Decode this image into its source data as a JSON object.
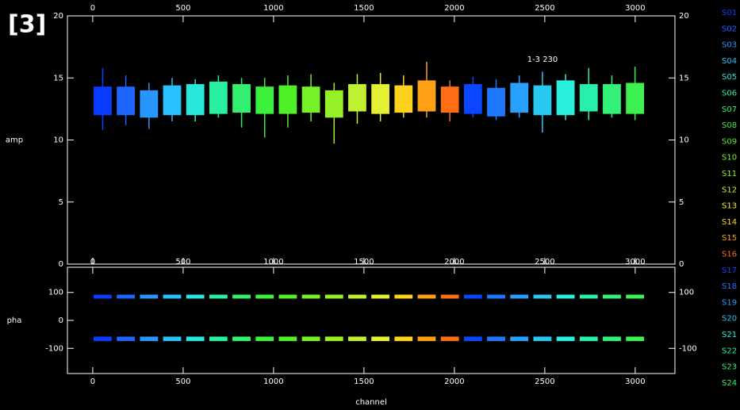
{
  "label": "[3]",
  "x_label": "channel",
  "chart_data": [
    {
      "type": "range",
      "y_label": "amp",
      "annotation": "1-3 230",
      "xlim": [
        -140,
        3220
      ],
      "xticks": [
        0,
        500,
        1000,
        1500,
        2000,
        2500,
        3000
      ],
      "ylim": [
        0,
        20
      ],
      "yticks": [
        0,
        5,
        10,
        15,
        20
      ],
      "y2ticks": [
        0,
        5,
        10,
        15,
        20
      ],
      "series": [
        {
          "name": "S01",
          "color": "#0a3cff",
          "x": [
            5,
            105
          ],
          "whisker": [
            10.8,
            15.8
          ],
          "bands": [
            [
              12,
              14.3
            ]
          ]
        },
        {
          "name": "S02",
          "color": "#1e64ff",
          "x": [
            133,
            233
          ],
          "whisker": [
            11.2,
            15.2
          ],
          "bands": [
            [
              12,
              14.3
            ]
          ]
        },
        {
          "name": "S03",
          "color": "#2896ff",
          "x": [
            261,
            361
          ],
          "whisker": [
            10.9,
            14.6
          ],
          "bands": [
            [
              11.8,
              14
            ]
          ]
        },
        {
          "name": "S04",
          "color": "#28c0ff",
          "x": [
            389,
            489
          ],
          "whisker": [
            11.5,
            15
          ],
          "bands": [
            [
              12,
              14.4
            ]
          ]
        },
        {
          "name": "S05",
          "color": "#28e6dc",
          "x": [
            517,
            617
          ],
          "whisker": [
            11.5,
            14.9
          ],
          "bands": [
            [
              12,
              14.5
            ]
          ]
        },
        {
          "name": "S06",
          "color": "#28f0a0",
          "x": [
            645,
            745
          ],
          "whisker": [
            11.8,
            15.2
          ],
          "bands": [
            [
              12.1,
              14.7
            ]
          ]
        },
        {
          "name": "S07",
          "color": "#32f06e",
          "x": [
            773,
            873
          ],
          "whisker": [
            11,
            15
          ],
          "bands": [
            [
              12.2,
              14.5
            ]
          ]
        },
        {
          "name": "S08",
          "color": "#3cf03c",
          "x": [
            901,
            1001
          ],
          "whisker": [
            10.2,
            15
          ],
          "bands": [
            [
              12.1,
              14.3
            ]
          ]
        },
        {
          "name": "S09",
          "color": "#50f028",
          "x": [
            1029,
            1129
          ],
          "whisker": [
            11,
            15.2
          ],
          "bands": [
            [
              12.1,
              14.4
            ]
          ]
        },
        {
          "name": "S10",
          "color": "#78f028",
          "x": [
            1157,
            1257
          ],
          "whisker": [
            11.5,
            15.3
          ],
          "bands": [
            [
              12.2,
              14.3
            ]
          ]
        },
        {
          "name": "S11",
          "color": "#96f028",
          "x": [
            1285,
            1385
          ],
          "whisker": [
            9.7,
            14.6
          ],
          "bands": [
            [
              11.8,
              14
            ]
          ]
        },
        {
          "name": "S12",
          "color": "#c0f032",
          "x": [
            1413,
            1513
          ],
          "whisker": [
            11.3,
            15.3
          ],
          "bands": [
            [
              12.3,
              14.5
            ]
          ]
        },
        {
          "name": "S13",
          "color": "#e6f032",
          "x": [
            1541,
            1641
          ],
          "whisker": [
            11.5,
            15.4
          ],
          "bands": [
            [
              12.1,
              14.5
            ]
          ]
        },
        {
          "name": "S14",
          "color": "#ffd21e",
          "x": [
            1669,
            1769
          ],
          "whisker": [
            11.8,
            15.2
          ],
          "bands": [
            [
              12.2,
              14.4
            ]
          ]
        },
        {
          "name": "S15",
          "color": "#ffa014",
          "x": [
            1797,
            1897
          ],
          "whisker": [
            11.8,
            16.3
          ],
          "bands": [
            [
              12.3,
              14.8
            ]
          ]
        },
        {
          "name": "S16",
          "color": "#ff6e14",
          "x": [
            1925,
            2025
          ],
          "whisker": [
            11.5,
            14.8
          ],
          "bands": [
            [
              12.2,
              14.3
            ]
          ]
        },
        {
          "name": "S17",
          "color": "#0a46ff",
          "x": [
            2053,
            2153
          ],
          "whisker": [
            11.8,
            15.1
          ],
          "bands": [
            [
              12.1,
              14.5
            ]
          ]
        },
        {
          "name": "S18",
          "color": "#1e78ff",
          "x": [
            2181,
            2281
          ],
          "whisker": [
            11.6,
            14.9
          ],
          "bands": [
            [
              11.9,
              14.2
            ]
          ]
        },
        {
          "name": "S19",
          "color": "#28a0ff",
          "x": [
            2309,
            2409
          ],
          "whisker": [
            11.8,
            15.2
          ],
          "bands": [
            [
              12.2,
              14.6
            ]
          ]
        },
        {
          "name": "S20",
          "color": "#28c8f0",
          "x": [
            2437,
            2537
          ],
          "whisker": [
            10.6,
            15.5
          ],
          "bands": [
            [
              12,
              14.4
            ]
          ]
        },
        {
          "name": "S21",
          "color": "#28f0dc",
          "x": [
            2565,
            2665
          ],
          "whisker": [
            11.6,
            15.3
          ],
          "bands": [
            [
              12,
              14.8
            ]
          ]
        },
        {
          "name": "S22",
          "color": "#28f0aa",
          "x": [
            2693,
            2793
          ],
          "whisker": [
            11.6,
            15.8
          ],
          "bands": [
            [
              12.3,
              14.5
            ]
          ]
        },
        {
          "name": "S23",
          "color": "#32f078",
          "x": [
            2821,
            2921
          ],
          "whisker": [
            11.8,
            15.2
          ],
          "bands": [
            [
              12.1,
              14.5
            ]
          ]
        },
        {
          "name": "S24",
          "color": "#3cf050",
          "x": [
            2949,
            3049
          ],
          "whisker": [
            11.6,
            15.9
          ],
          "bands": [
            [
              12.1,
              14.6
            ]
          ]
        }
      ]
    },
    {
      "type": "range",
      "y_label": "pha",
      "xlim": [
        -140,
        3220
      ],
      "xticks": [
        0,
        500,
        1000,
        1500,
        2000,
        2500,
        3000
      ],
      "ylim": [
        -190,
        190
      ],
      "yticks": [
        -100,
        0,
        100
      ],
      "y2ticks": [
        -100,
        100
      ],
      "series": [
        {
          "color": "#0a3cff",
          "x": [
            5,
            105
          ],
          "bands": [
            [
              78,
              92
            ],
            [
              -74,
              -58
            ]
          ]
        },
        {
          "color": "#1e64ff",
          "x": [
            133,
            233
          ],
          "bands": [
            [
              78,
              92
            ],
            [
              -74,
              -58
            ]
          ]
        },
        {
          "color": "#2896ff",
          "x": [
            261,
            361
          ],
          "bands": [
            [
              78,
              92
            ],
            [
              -74,
              -58
            ]
          ]
        },
        {
          "color": "#28c0ff",
          "x": [
            389,
            489
          ],
          "bands": [
            [
              78,
              92
            ],
            [
              -74,
              -58
            ]
          ]
        },
        {
          "color": "#28e6dc",
          "x": [
            517,
            617
          ],
          "bands": [
            [
              78,
              92
            ],
            [
              -74,
              -58
            ]
          ]
        },
        {
          "color": "#28f0a0",
          "x": [
            645,
            745
          ],
          "bands": [
            [
              78,
              92
            ],
            [
              -74,
              -58
            ]
          ]
        },
        {
          "color": "#32f06e",
          "x": [
            773,
            873
          ],
          "bands": [
            [
              78,
              92
            ],
            [
              -74,
              -58
            ]
          ]
        },
        {
          "color": "#3cf03c",
          "x": [
            901,
            1001
          ],
          "bands": [
            [
              78,
              92
            ],
            [
              -74,
              -58
            ]
          ]
        },
        {
          "color": "#50f028",
          "x": [
            1029,
            1129
          ],
          "bands": [
            [
              78,
              92
            ],
            [
              -74,
              -58
            ]
          ]
        },
        {
          "color": "#78f028",
          "x": [
            1157,
            1257
          ],
          "bands": [
            [
              78,
              92
            ],
            [
              -74,
              -58
            ]
          ]
        },
        {
          "color": "#96f028",
          "x": [
            1285,
            1385
          ],
          "bands": [
            [
              78,
              92
            ],
            [
              -74,
              -58
            ]
          ]
        },
        {
          "color": "#c0f032",
          "x": [
            1413,
            1513
          ],
          "bands": [
            [
              78,
              92
            ],
            [
              -74,
              -58
            ]
          ]
        },
        {
          "color": "#e6f032",
          "x": [
            1541,
            1641
          ],
          "bands": [
            [
              78,
              92
            ],
            [
              -74,
              -58
            ]
          ]
        },
        {
          "color": "#ffd21e",
          "x": [
            1669,
            1769
          ],
          "bands": [
            [
              78,
              92
            ],
            [
              -74,
              -58
            ]
          ]
        },
        {
          "color": "#ffa014",
          "x": [
            1797,
            1897
          ],
          "bands": [
            [
              78,
              92
            ],
            [
              -74,
              -58
            ]
          ]
        },
        {
          "color": "#ff6e14",
          "x": [
            1925,
            2025
          ],
          "bands": [
            [
              78,
              92
            ],
            [
              -74,
              -58
            ]
          ]
        },
        {
          "color": "#0a46ff",
          "x": [
            2053,
            2153
          ],
          "bands": [
            [
              78,
              92
            ],
            [
              -74,
              -58
            ]
          ]
        },
        {
          "color": "#1e78ff",
          "x": [
            2181,
            2281
          ],
          "bands": [
            [
              78,
              92
            ],
            [
              -74,
              -58
            ]
          ]
        },
        {
          "color": "#28a0ff",
          "x": [
            2309,
            2409
          ],
          "bands": [
            [
              78,
              92
            ],
            [
              -74,
              -58
            ]
          ]
        },
        {
          "color": "#28c8f0",
          "x": [
            2437,
            2537
          ],
          "bands": [
            [
              78,
              92
            ],
            [
              -74,
              -58
            ]
          ]
        },
        {
          "color": "#28f0dc",
          "x": [
            2565,
            2665
          ],
          "bands": [
            [
              78,
              92
            ],
            [
              -74,
              -58
            ]
          ]
        },
        {
          "color": "#28f0aa",
          "x": [
            2693,
            2793
          ],
          "bands": [
            [
              78,
              92
            ],
            [
              -74,
              -58
            ]
          ]
        },
        {
          "color": "#32f078",
          "x": [
            2821,
            2921
          ],
          "bands": [
            [
              78,
              92
            ],
            [
              -74,
              -58
            ]
          ]
        },
        {
          "color": "#3cf050",
          "x": [
            2949,
            3049
          ],
          "bands": [
            [
              78,
              92
            ],
            [
              -74,
              -58
            ]
          ]
        }
      ]
    }
  ]
}
